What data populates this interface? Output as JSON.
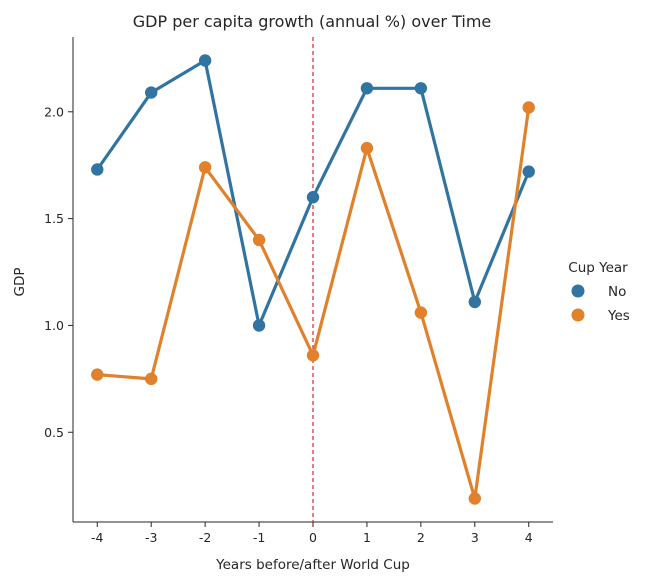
{
  "chart_data": {
    "type": "line",
    "title": "GDP per capita growth (annual %) over Time",
    "xlabel": "Years before/after World Cup",
    "ylabel": "GDP",
    "categories": [
      "-4",
      "-3",
      "-2",
      "-1",
      "0",
      "1",
      "2",
      "3",
      "4"
    ],
    "x_values": [
      -4,
      -3,
      -2,
      -1,
      0,
      1,
      2,
      3,
      4
    ],
    "xlim": [
      -4.45,
      4.45
    ],
    "ylim": [
      0.08,
      2.35
    ],
    "yticks": [
      0.5,
      1.0,
      1.5,
      2.0
    ],
    "ytick_labels": [
      "0.5",
      "1.0",
      "1.5",
      "2.0"
    ],
    "reference_line": {
      "x": 0,
      "style": "dashed",
      "color": "#d62728"
    },
    "legend": {
      "title": "Cup Year",
      "position": "right"
    },
    "series": [
      {
        "name": "No",
        "color": "#3274a1",
        "values": [
          1.73,
          2.09,
          2.24,
          1.0,
          1.6,
          2.11,
          2.11,
          1.11,
          1.72
        ]
      },
      {
        "name": "Yes",
        "color": "#e1812c",
        "values": [
          0.77,
          0.75,
          1.74,
          1.4,
          0.86,
          1.83,
          1.06,
          0.19,
          2.02
        ]
      }
    ]
  }
}
